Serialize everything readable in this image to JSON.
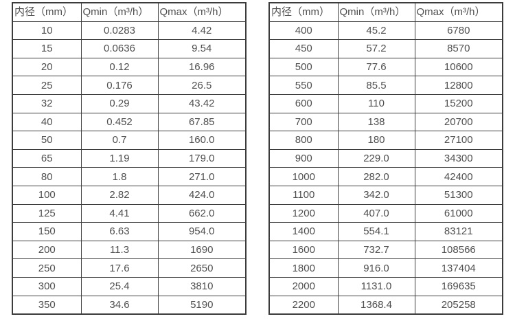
{
  "accent_colors": {
    "border": "#3c3c3c",
    "text": "#4f4f4f",
    "background": "#ffffff"
  },
  "table_left": {
    "headers": [
      "内径（mm）",
      "Qmin（m³/h）",
      "Qmax（m³/h）"
    ],
    "rows": [
      [
        "10",
        "0.0283",
        "4.42"
      ],
      [
        "15",
        "0.0636",
        "9.54"
      ],
      [
        "20",
        "0.12",
        "16.96"
      ],
      [
        "25",
        "0.176",
        "26.5"
      ],
      [
        "32",
        "0.29",
        "43.42"
      ],
      [
        "40",
        "0.452",
        "67.85"
      ],
      [
        "50",
        "0.7",
        "160.0"
      ],
      [
        "65",
        "1.19",
        "179.0"
      ],
      [
        "80",
        "1.8",
        "271.0"
      ],
      [
        "100",
        "2.82",
        "424.0"
      ],
      [
        "125",
        "4.41",
        "662.0"
      ],
      [
        "150",
        "6.63",
        "954.0"
      ],
      [
        "200",
        "11.3",
        "1690"
      ],
      [
        "250",
        "17.6",
        "2650"
      ],
      [
        "300",
        "25.4",
        "3810"
      ],
      [
        "350",
        "34.6",
        "5190"
      ]
    ]
  },
  "table_right": {
    "headers": [
      "内径（mm）",
      "Qmin（m³/h）",
      "Qmax（m³/h）"
    ],
    "rows": [
      [
        "400",
        "45.2",
        "6780"
      ],
      [
        "450",
        "57.2",
        "8570"
      ],
      [
        "500",
        "77.6",
        "10600"
      ],
      [
        "550",
        "85.5",
        "12800"
      ],
      [
        "600",
        "110",
        "15200"
      ],
      [
        "700",
        "138",
        "20700"
      ],
      [
        "800",
        "180",
        "27100"
      ],
      [
        "900",
        "229.0",
        "34300"
      ],
      [
        "1000",
        "282.0",
        "42400"
      ],
      [
        "1100",
        "342.0",
        "51300"
      ],
      [
        "1200",
        "407.0",
        "61000"
      ],
      [
        "1400",
        "554.1",
        "83121"
      ],
      [
        "1600",
        "732.7",
        "108566"
      ],
      [
        "1800",
        "916.0",
        "137404"
      ],
      [
        "2000",
        "1131.0",
        "169635"
      ],
      [
        "2200",
        "1368.4",
        "205258"
      ]
    ]
  }
}
